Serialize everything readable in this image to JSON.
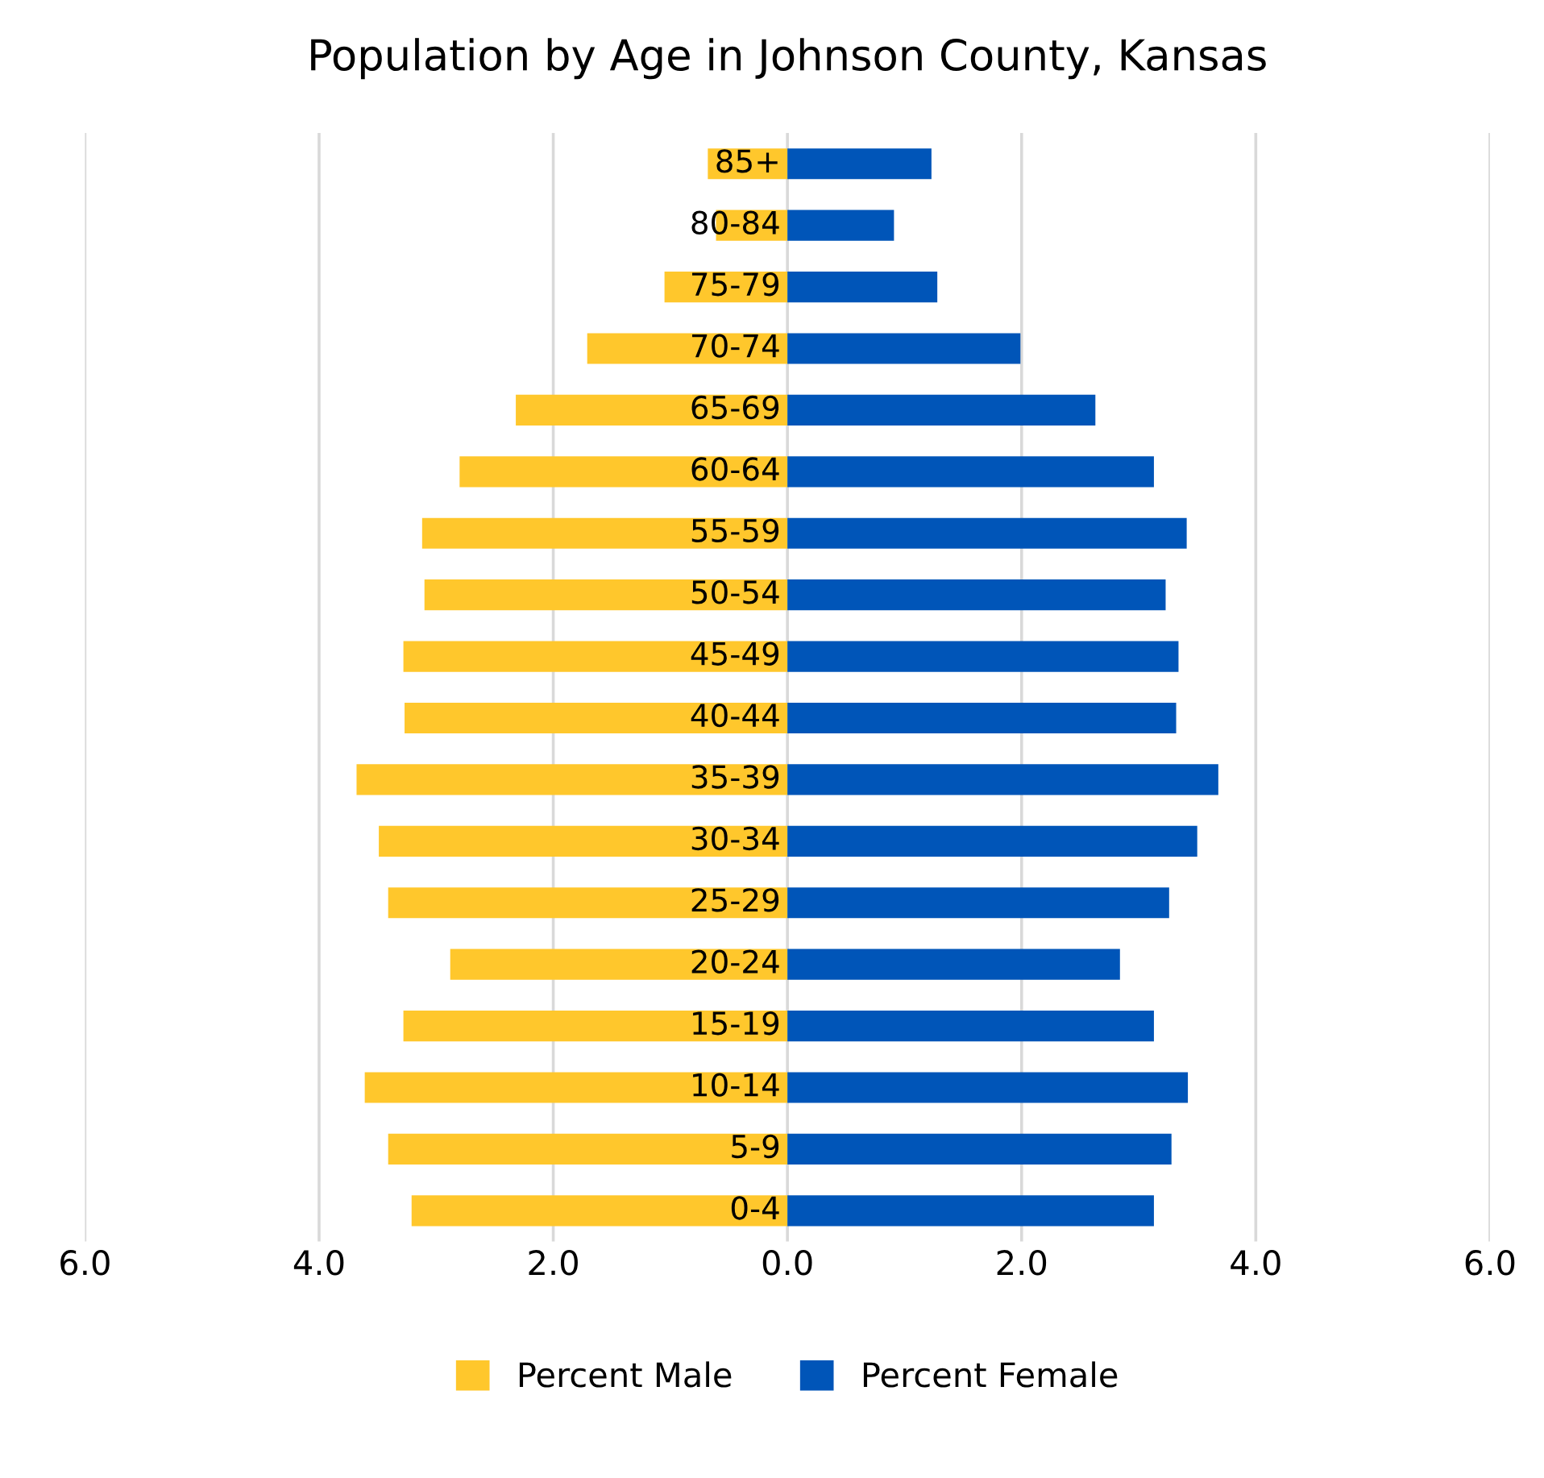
{
  "chart_data": {
    "type": "bar",
    "orientation": "horizontal",
    "title": "Population by Age in Johnson County, Kansas",
    "categories": [
      "85+",
      "80-84",
      "75-79",
      "70-74",
      "65-69",
      "60-64",
      "55-59",
      "50-54",
      "45-49",
      "40-44",
      "35-39",
      "30-34",
      "25-29",
      "20-24",
      "15-19",
      "10-14",
      "5-9",
      "0-4"
    ],
    "series": [
      {
        "name": "Percent Male",
        "color": "#ffc72c",
        "values": [
          -0.68,
          -0.61,
          -1.05,
          -1.71,
          -2.32,
          -2.8,
          -3.12,
          -3.1,
          -3.28,
          -3.27,
          -3.68,
          -3.49,
          -3.41,
          -2.88,
          -3.28,
          -3.61,
          -3.41,
          -3.21
        ]
      },
      {
        "name": "Percent Female",
        "color": "#0055b8",
        "values": [
          1.23,
          0.91,
          1.28,
          1.99,
          2.63,
          3.13,
          3.41,
          3.23,
          3.34,
          3.32,
          3.68,
          3.5,
          3.26,
          2.84,
          3.13,
          3.42,
          3.28,
          3.13
        ]
      }
    ],
    "xlim": [
      -6,
      6
    ],
    "xticks": [
      {
        "value": -6,
        "label": "6.0"
      },
      {
        "value": -4,
        "label": "4.0"
      },
      {
        "value": -2,
        "label": "2.0"
      },
      {
        "value": 0,
        "label": "0.0"
      },
      {
        "value": 2,
        "label": "2.0"
      },
      {
        "value": 4,
        "label": "4.0"
      },
      {
        "value": 6,
        "label": "6.0"
      }
    ],
    "grid": "x",
    "legend": "bottom",
    "stacked": true
  }
}
